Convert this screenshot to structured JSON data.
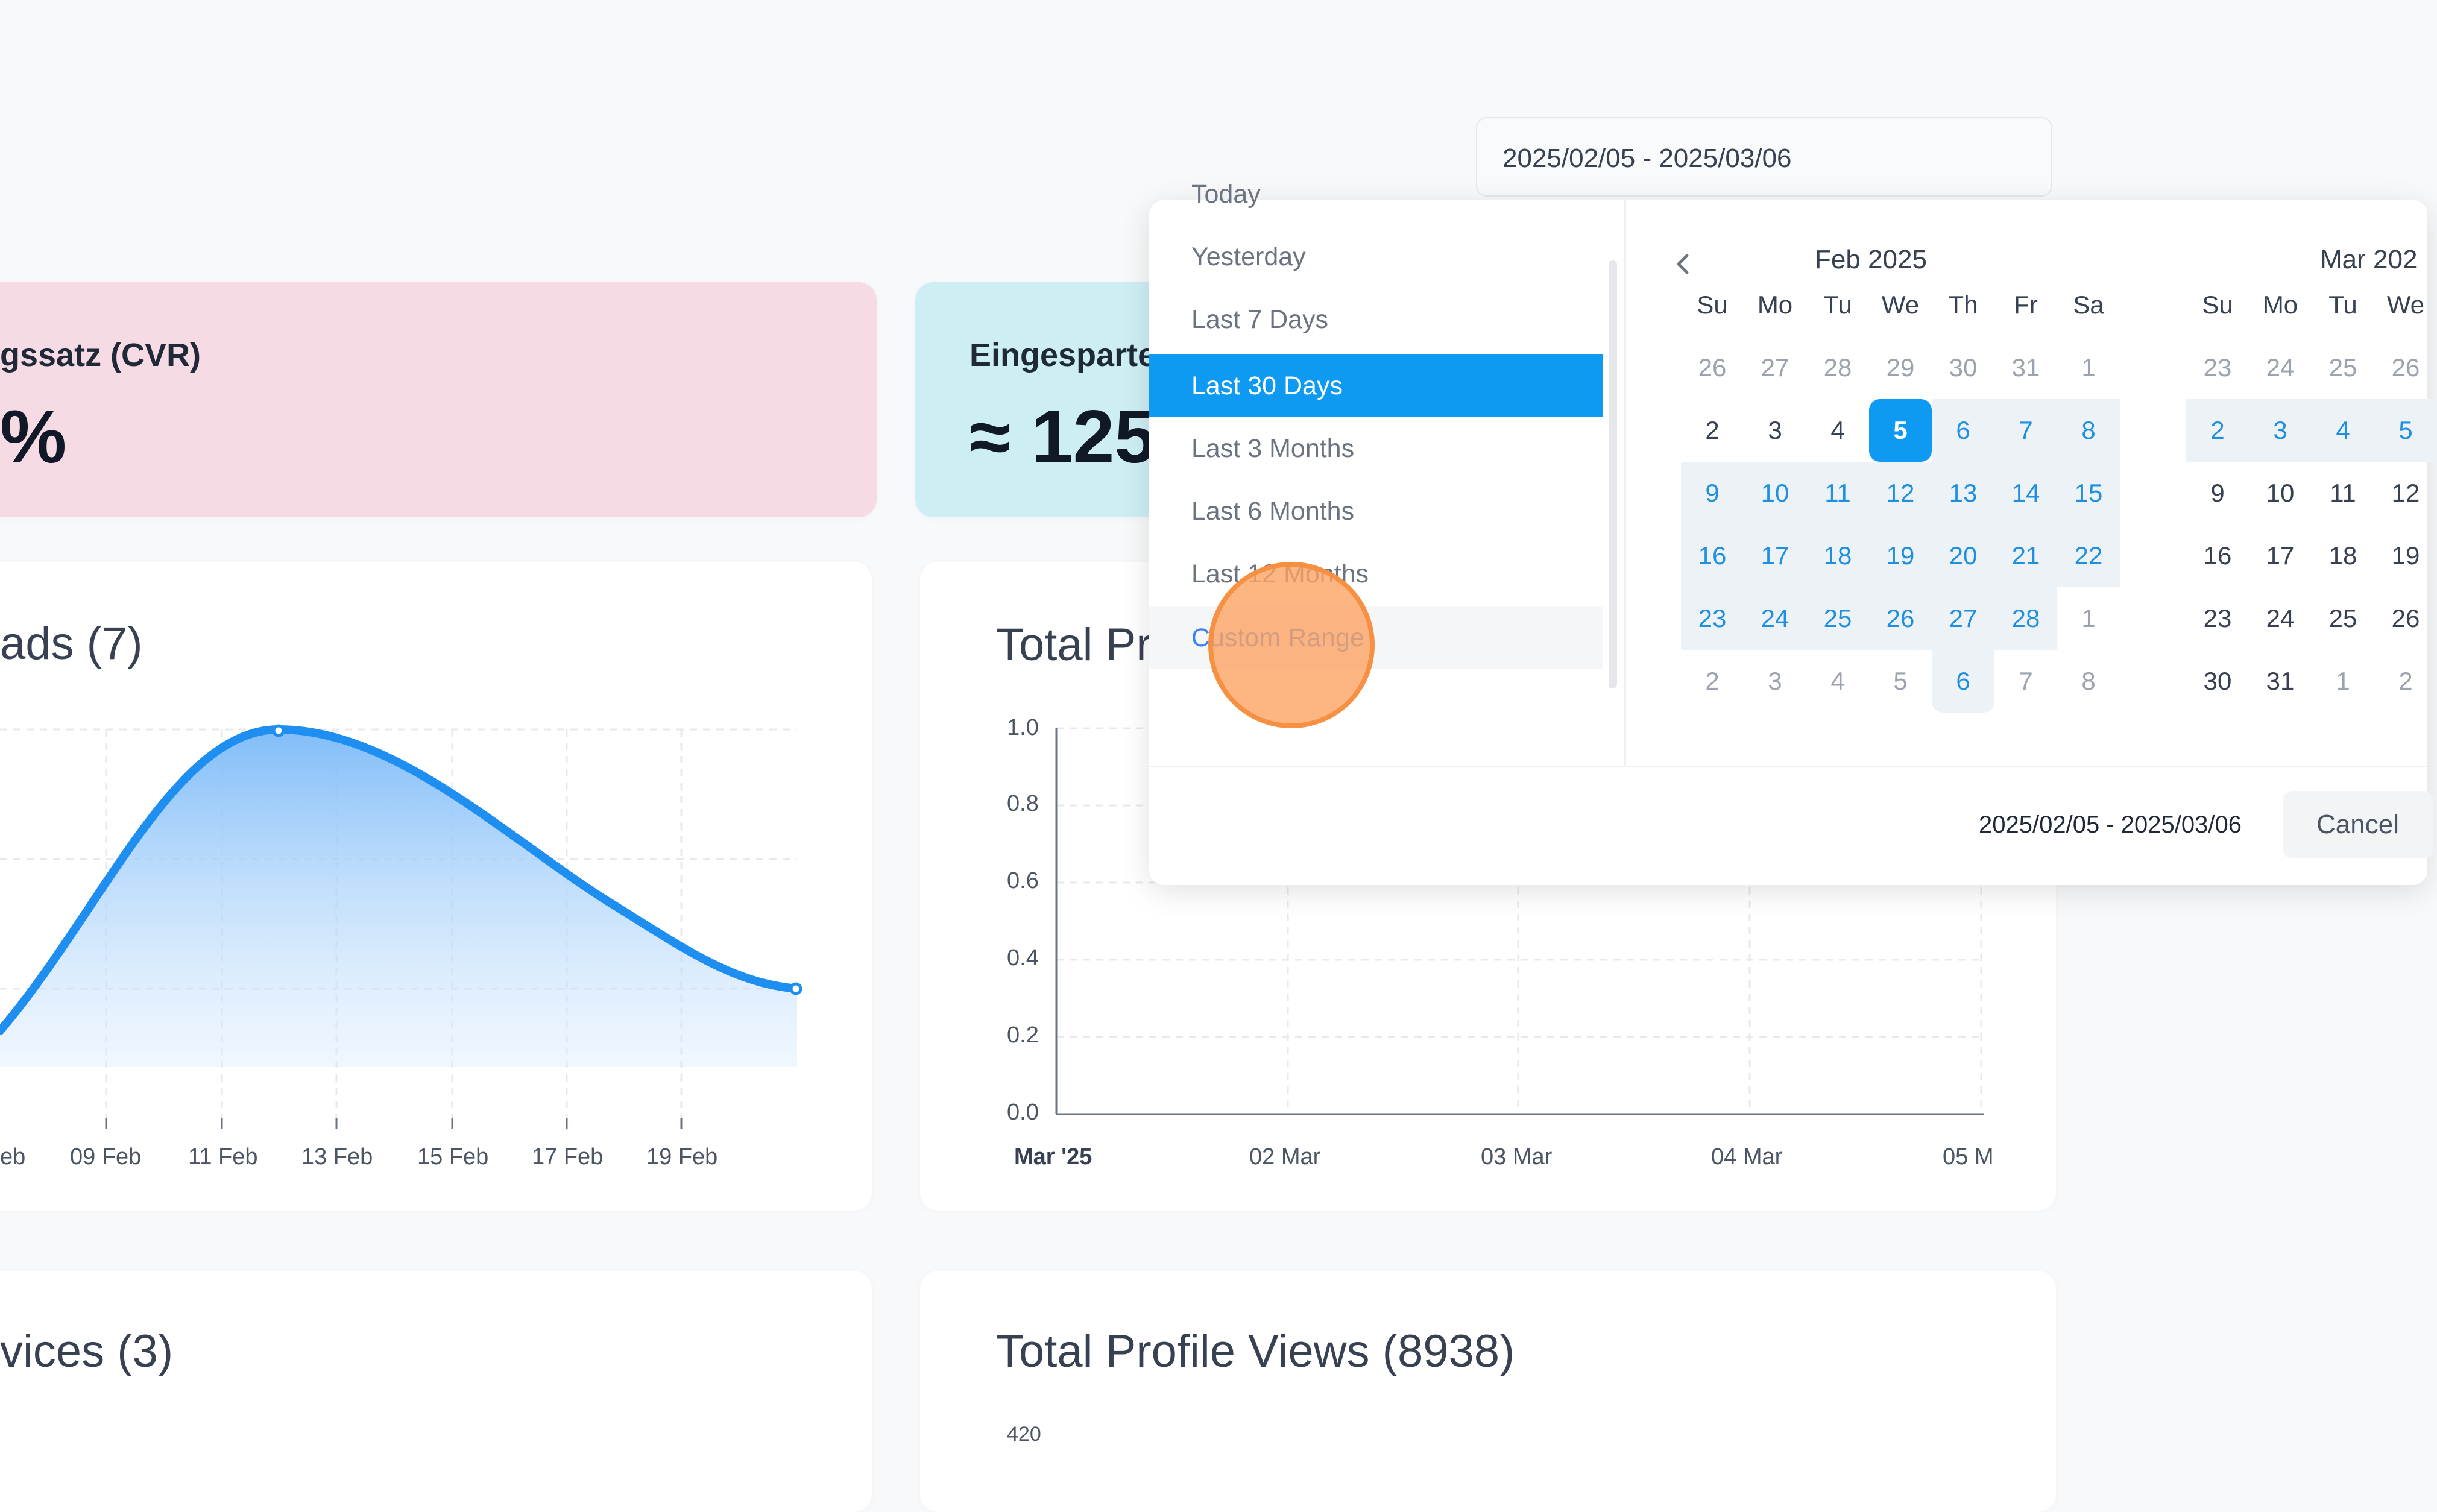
{
  "stats": [
    {
      "label": "gssatz (CVR)",
      "value": "%",
      "color": "#f6dbe4"
    },
    {
      "label": "Eingesparte",
      "value": "≈ 125",
      "color": "#cdeff4"
    }
  ],
  "cards": {
    "leads_title": "ads (7)",
    "profile_title_top": "Total Pr",
    "services_title": "vices (3)",
    "profile_views_title": "Total Profile Views (8938)",
    "profile_views_first_tick": "420"
  },
  "leads_chart": {
    "x_labels": [
      "eb",
      "09 Feb",
      "11 Feb",
      "13 Feb",
      "15 Feb",
      "17 Feb",
      "19 Feb"
    ]
  },
  "chart_data": [
    {
      "type": "area",
      "title": "ads (7)",
      "x": [
        "eb",
        "09 Feb",
        "11 Feb",
        "13 Feb",
        "15 Feb",
        "17 Feb",
        "19 Feb"
      ],
      "series": [
        {
          "values": [
            0.1,
            0.6,
            1.0,
            0.9,
            0.6,
            0.35,
            0.25
          ]
        }
      ],
      "color": "#1e8ff0"
    },
    {
      "type": "line",
      "title": "Total Pr",
      "x": [
        "Mar '25",
        "02 Mar",
        "03 Mar",
        "04 Mar",
        "05 M"
      ],
      "y_ticks": [
        "1.0",
        "0.8",
        "0.6",
        "0.4",
        "0.2",
        "0.0"
      ],
      "ylim": [
        0,
        1
      ],
      "series": []
    }
  ],
  "date_picker": {
    "input_value": "2025/02/05 - 2025/03/06",
    "ranges": [
      "Today",
      "Yesterday",
      "Last 7 Days",
      "Last 30 Days",
      "Last 3 Months",
      "Last 6 Months",
      "Last 12 Months",
      "Custom Range"
    ],
    "active_range": "Last 30 Days",
    "hover_range": "Custom Range",
    "prev_icon": "chevron-left-icon",
    "weekdays": [
      "Su",
      "Mo",
      "Tu",
      "We",
      "Th",
      "Fr",
      "Sa"
    ],
    "left_month": {
      "label": "Feb 2025",
      "weeks": [
        [
          "26",
          "27",
          "28",
          "29",
          "30",
          "31",
          "1"
        ],
        [
          "2",
          "3",
          "4",
          "5",
          "6",
          "7",
          "8"
        ],
        [
          "9",
          "10",
          "11",
          "12",
          "13",
          "14",
          "15"
        ],
        [
          "16",
          "17",
          "18",
          "19",
          "20",
          "21",
          "22"
        ],
        [
          "23",
          "24",
          "25",
          "26",
          "27",
          "28",
          "1"
        ],
        [
          "2",
          "3",
          "4",
          "5",
          "6",
          "7",
          "8"
        ]
      ]
    },
    "right_month": {
      "label": "Mar 202",
      "weekdays": [
        "Su",
        "Mo",
        "Tu",
        "We"
      ],
      "weeks": [
        [
          "23",
          "24",
          "25",
          "26"
        ],
        [
          "2",
          "3",
          "4",
          "5"
        ],
        [
          "9",
          "10",
          "11",
          "12"
        ],
        [
          "16",
          "17",
          "18",
          "19"
        ],
        [
          "23",
          "24",
          "25",
          "26"
        ],
        [
          "30",
          "31",
          "1",
          "2"
        ]
      ]
    },
    "footer_range": "2025/02/05 - 2025/03/06",
    "cancel_label": "Cancel",
    "accent": "#0e9af2"
  }
}
